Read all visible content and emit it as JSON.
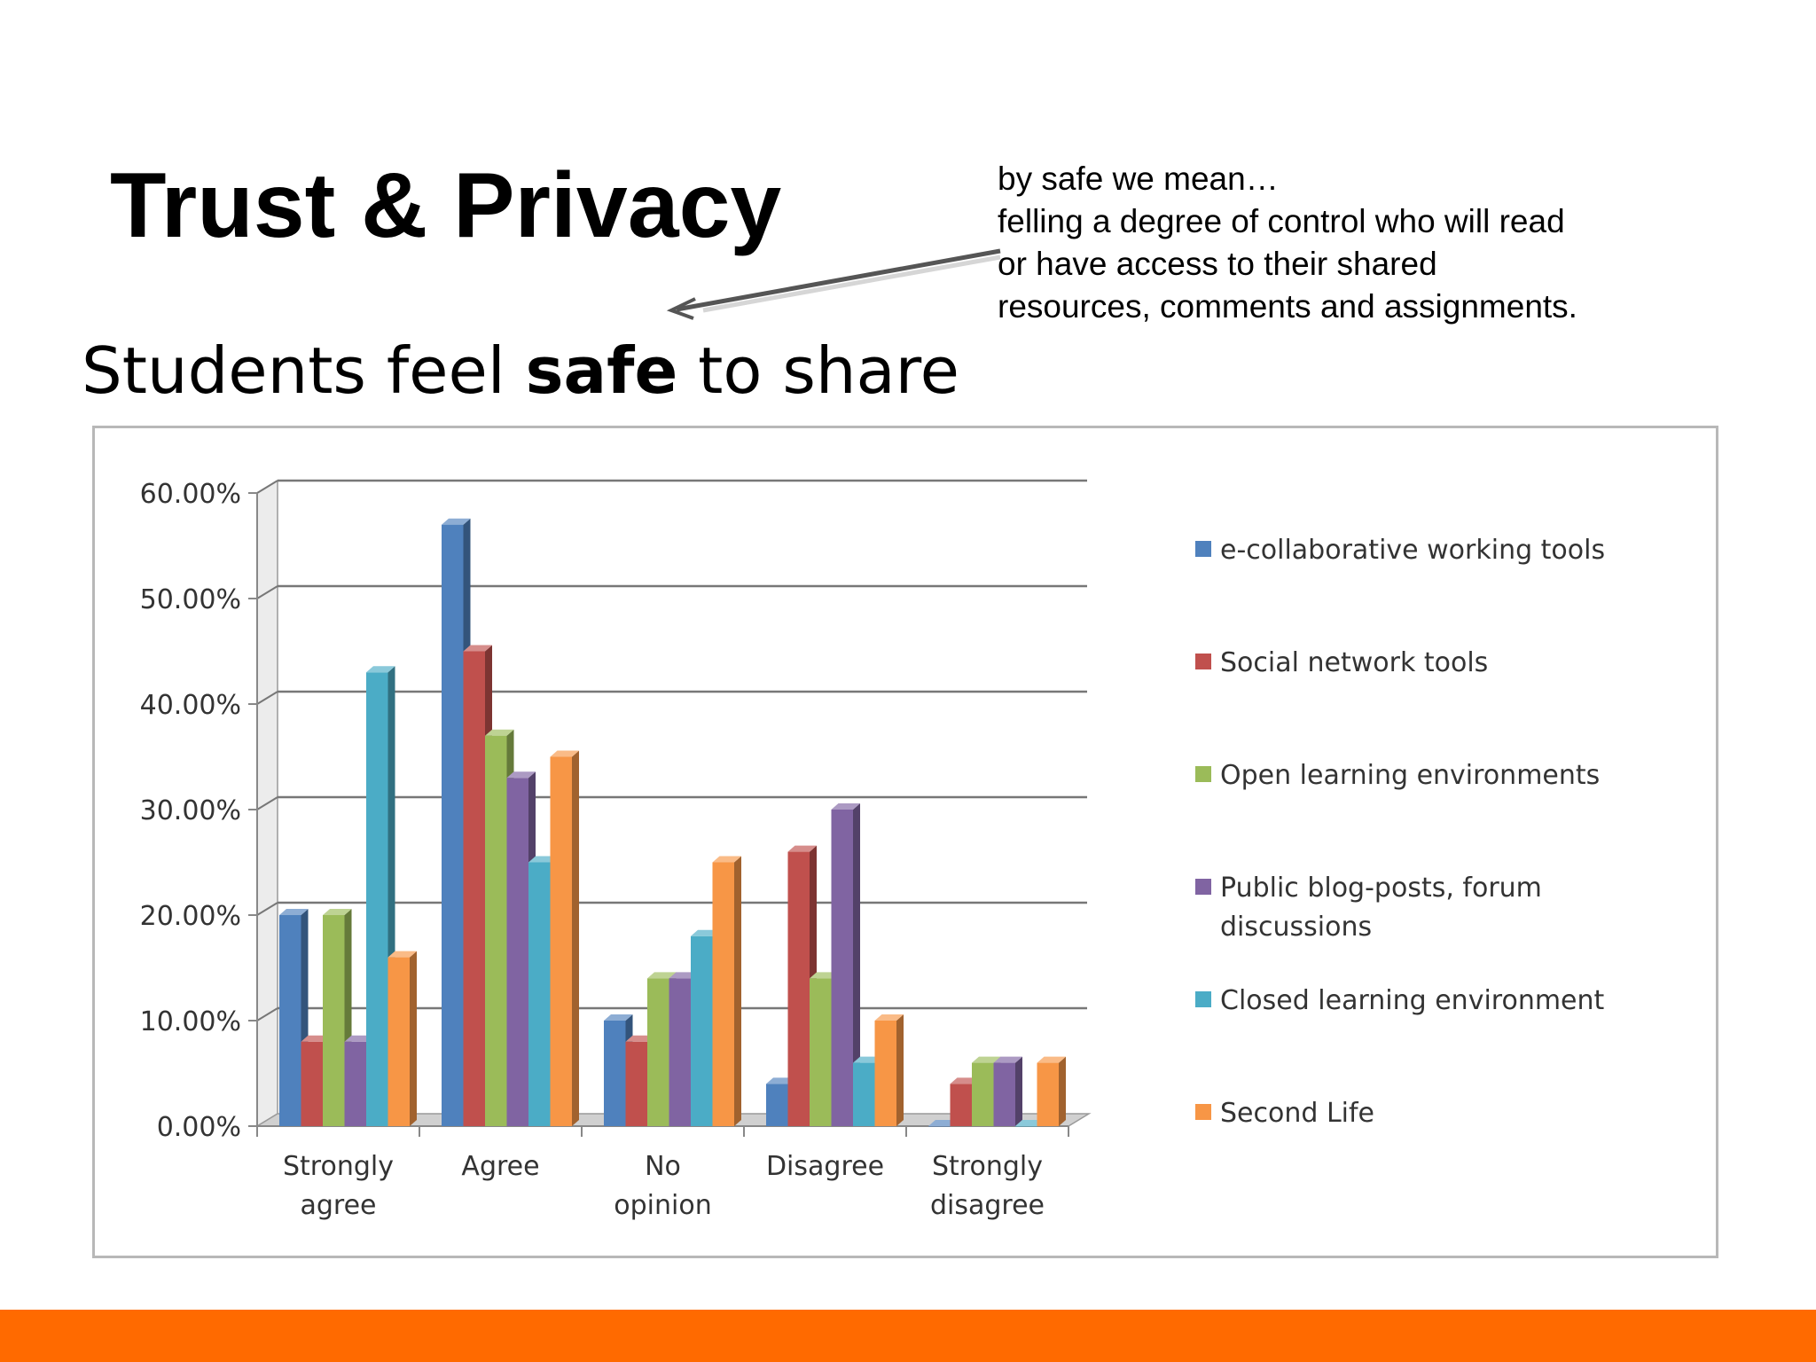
{
  "slide": {
    "title": "Trust & Privacy",
    "subtitle_pre": "Students feel ",
    "subtitle_bold": "safe",
    "subtitle_post": " to share",
    "note_lines": [
      "by safe we mean…",
      "felling a degree of control who will read",
      "or have access to their shared",
      "resources, comments and assignments."
    ],
    "accent_color": "#ff6a00"
  },
  "chart_data": {
    "type": "bar",
    "title": "",
    "xlabel": "",
    "ylabel": "",
    "ylim": [
      0,
      60
    ],
    "y_ticks": [
      "0.00%",
      "10.00%",
      "20.00%",
      "30.00%",
      "40.00%",
      "50.00%",
      "60.00%"
    ],
    "grid": true,
    "legend_position": "right",
    "categories": [
      [
        "Strongly",
        "agree"
      ],
      [
        "Agree"
      ],
      [
        "No",
        "opinion"
      ],
      [
        "Disagree"
      ],
      [
        "Strongly",
        "disagree"
      ]
    ],
    "series": [
      {
        "name": "e-collaborative working tools",
        "lines": [
          "e-collaborative working tools"
        ],
        "color": "#4f81bd",
        "values": [
          20,
          57,
          10,
          4,
          0
        ]
      },
      {
        "name": "Social network tools",
        "lines": [
          "Social network tools"
        ],
        "color": "#c0504d",
        "values": [
          8,
          45,
          8,
          26,
          4
        ]
      },
      {
        "name": "Open learning environments",
        "lines": [
          "Open learning environments"
        ],
        "color": "#9bbb59",
        "values": [
          20,
          37,
          14,
          14,
          6
        ]
      },
      {
        "name": "Public blog-posts, forum discussions",
        "lines": [
          "Public blog-posts, forum",
          "discussions"
        ],
        "color": "#8064a2",
        "values": [
          8,
          33,
          14,
          30,
          6
        ]
      },
      {
        "name": "Closed learning environment",
        "lines": [
          "Closed learning environment"
        ],
        "color": "#4bacc6",
        "values": [
          43,
          25,
          18,
          6,
          0
        ]
      },
      {
        "name": "Second Life",
        "lines": [
          "Second Life"
        ],
        "color": "#f79646",
        "values": [
          16,
          35,
          25,
          10,
          6
        ]
      }
    ]
  }
}
